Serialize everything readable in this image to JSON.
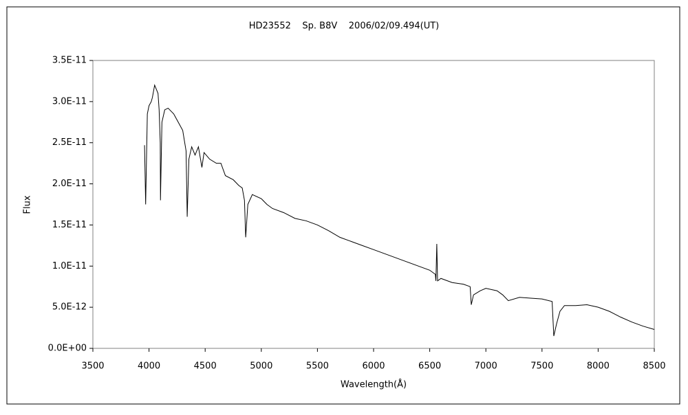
{
  "chart_data": {
    "type": "line",
    "title": "HD23552    Sp. B8V    2006/02/09.494(UT)",
    "xlabel": "Wavelength(Å)",
    "ylabel": "Flux",
    "color": "#000000",
    "x": [
      3960,
      3970,
      3985,
      4000,
      4020,
      4030,
      4050,
      4080,
      4090,
      4100,
      4102,
      4115,
      4140,
      4170,
      4220,
      4260,
      4300,
      4330,
      4340,
      4355,
      4380,
      4410,
      4440,
      4471,
      4490,
      4540,
      4600,
      4640,
      4680,
      4750,
      4800,
      4830,
      4850,
      4861,
      4880,
      4920,
      5000,
      5050,
      5100,
      5200,
      5300,
      5400,
      5500,
      5600,
      5700,
      5800,
      5900,
      6000,
      6100,
      6200,
      6300,
      6400,
      6500,
      6550,
      6555,
      6563,
      6570,
      6600,
      6700,
      6800,
      6860,
      6870,
      6890,
      6950,
      7000,
      7100,
      7150,
      7200,
      7300,
      7400,
      7500,
      7590,
      7605,
      7630,
      7660,
      7700,
      7800,
      7900,
      8000,
      8100,
      8200,
      8300,
      8400,
      8500
    ],
    "values": [
      2.47e-11,
      1.75e-11,
      2.85e-11,
      2.95e-11,
      3e-11,
      3.05e-11,
      3.2e-11,
      3.1e-11,
      2.9e-11,
      2.5e-11,
      1.8e-11,
      2.75e-11,
      2.9e-11,
      2.92e-11,
      2.85e-11,
      2.75e-11,
      2.65e-11,
      2.4e-11,
      1.6e-11,
      2.3e-11,
      2.45e-11,
      2.35e-11,
      2.45e-11,
      2.2e-11,
      2.38e-11,
      2.3e-11,
      2.25e-11,
      2.25e-11,
      2.1e-11,
      2.05e-11,
      1.98e-11,
      1.95e-11,
      1.8e-11,
      1.35e-11,
      1.75e-11,
      1.87e-11,
      1.82e-11,
      1.75e-11,
      1.7e-11,
      1.65e-11,
      1.58e-11,
      1.55e-11,
      1.5e-11,
      1.43e-11,
      1.35e-11,
      1.3e-11,
      1.25e-11,
      1.2e-11,
      1.15e-11,
      1.1e-11,
      1.05e-11,
      1e-11,
      9.5e-12,
      9e-12,
      8.2e-12,
      1.27e-11,
      8.2e-12,
      8.5e-12,
      8e-12,
      7.8e-12,
      7.5e-12,
      5.3e-12,
      6.5e-12,
      7e-12,
      7.3e-12,
      7e-12,
      6.5e-12,
      5.8e-12,
      6.2e-12,
      6.1e-12,
      6e-12,
      5.7e-12,
      1.5e-12,
      3e-12,
      4.5e-12,
      5.2e-12,
      5.2e-12,
      5.3e-12,
      5e-12,
      4.5e-12,
      3.8e-12,
      3.2e-12,
      2.7e-12,
      2.3e-12
    ],
    "xlim": [
      3500,
      8500
    ],
    "xticks": [
      3500,
      4000,
      4500,
      5000,
      5500,
      6000,
      6500,
      7000,
      7500,
      8000,
      8500
    ],
    "ylim": [
      0,
      3.5e-11
    ],
    "yticks": [
      {
        "value": 0,
        "label": "0.0E+00"
      },
      {
        "value": 5e-12,
        "label": "5.0E-12"
      },
      {
        "value": 1e-11,
        "label": "1.0E-11"
      },
      {
        "value": 1.5e-11,
        "label": "1.5E-11"
      },
      {
        "value": 2e-11,
        "label": "2.0E-11"
      },
      {
        "value": 2.5e-11,
        "label": "2.5E-11"
      },
      {
        "value": 3e-11,
        "label": "3.0E-11"
      },
      {
        "value": 3.5e-11,
        "label": "3.5E-11"
      }
    ]
  }
}
